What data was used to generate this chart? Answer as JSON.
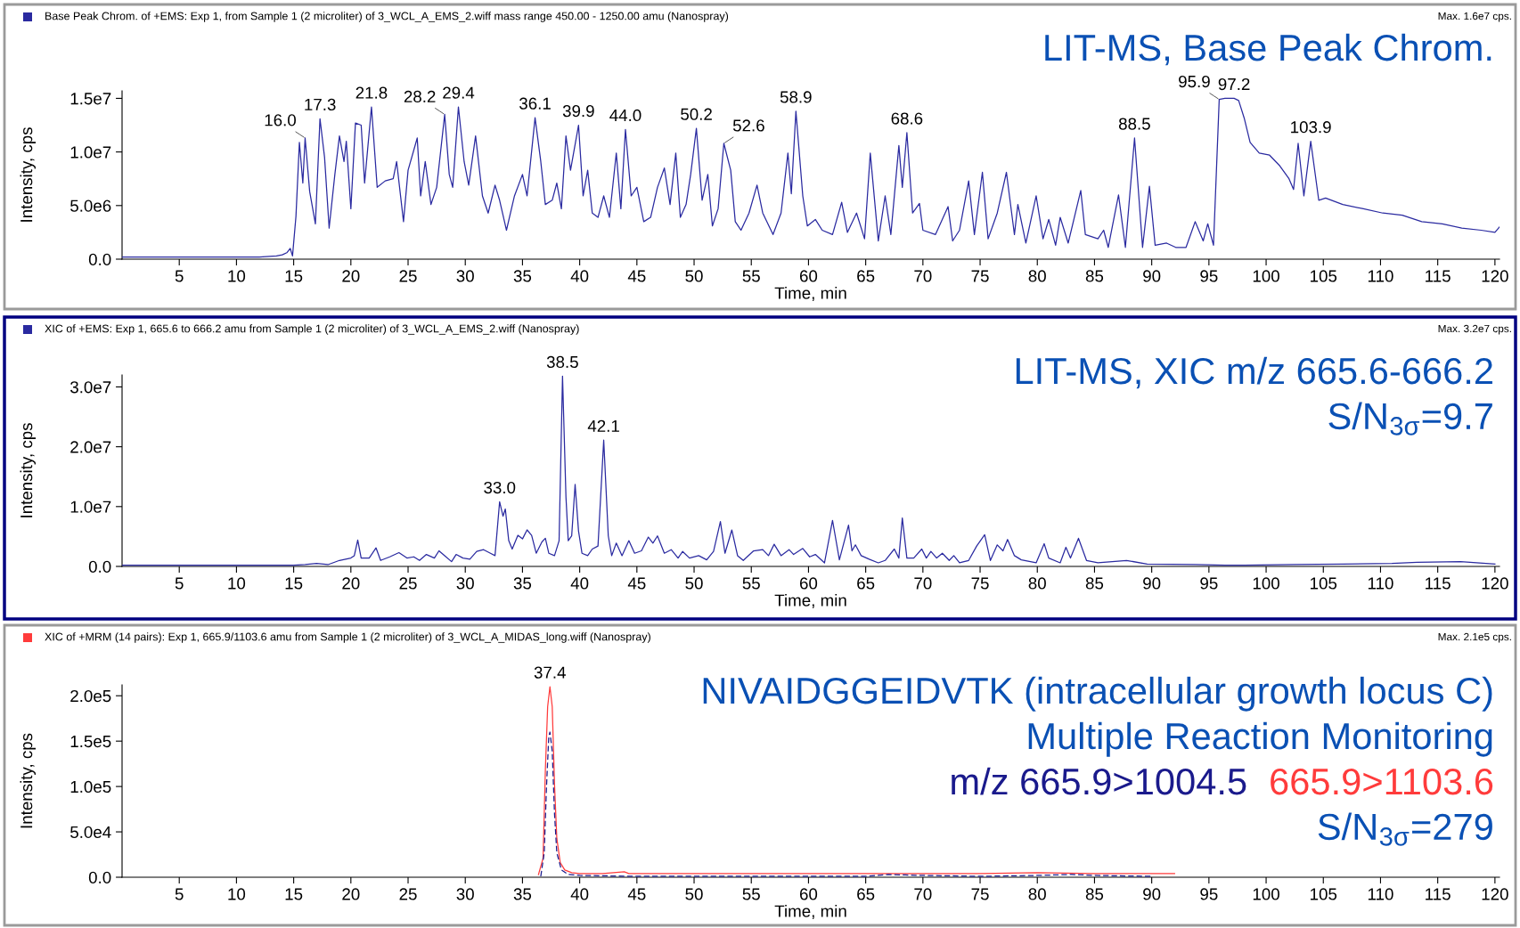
{
  "chart_data": [
    {
      "type": "line",
      "title": "Base Peak Chrom. of +EMS: Exp 1, from Sample 1 (2 microliter) of 3_WCL_A_EMS_2.wiff mass range 450.00 - 1250.00 amu (Nanospray)",
      "subtitle": "Max. 1.6e7 cps.",
      "xlabel": "Time, min",
      "ylabel": "Intensity, cps",
      "annotations": [
        "LIT-MS, Base Peak Chrom.",
        {
          "text": "16.0",
          "x": 16.0,
          "y": 11300000.0
        },
        {
          "text": "17.3",
          "x": 17.3,
          "y": 13100000.0
        },
        {
          "text": "21.8",
          "x": 21.8,
          "y": 14200000.0
        },
        {
          "text": "28.2",
          "x": 28.2,
          "y": 13500000.0
        },
        {
          "text": "29.4",
          "x": 29.4,
          "y": 14200000.0
        },
        {
          "text": "36.1",
          "x": 36.1,
          "y": 13200000.0
        },
        {
          "text": "39.9",
          "x": 39.9,
          "y": 12500000.0
        },
        {
          "text": "44.0",
          "x": 44.0,
          "y": 12100000.0
        },
        {
          "text": "50.2",
          "x": 50.2,
          "y": 12200000.0
        },
        {
          "text": "52.6",
          "x": 52.6,
          "y": 10800000.0
        },
        {
          "text": "58.9",
          "x": 58.9,
          "y": 13800000.0
        },
        {
          "text": "68.6",
          "x": 68.6,
          "y": 11800000.0
        },
        {
          "text": "88.5",
          "x": 88.5,
          "y": 11300000.0
        },
        {
          "text": "95.9",
          "x": 95.9,
          "y": 14900000.0
        },
        {
          "text": "97.2",
          "x": 97.2,
          "y": 15000000.0
        },
        {
          "text": "103.9",
          "x": 103.9,
          "y": 11000000.0
        }
      ],
      "x": [
        0,
        2,
        4,
        6,
        8,
        10,
        12,
        13.5,
        14.0,
        14.4,
        14.7,
        14.9,
        15.2,
        15.5,
        15.8,
        16.0,
        16.4,
        16.9,
        17.3,
        17.7,
        18.1,
        18.6,
        19.0,
        19.4,
        19.6,
        20.0,
        20.4,
        20.9,
        21.2,
        21.8,
        22.3,
        23.0,
        23.7,
        24.0,
        24.6,
        25.0,
        25.8,
        26.1,
        26.5,
        27.0,
        27.5,
        28.2,
        28.6,
        28.9,
        29.4,
        29.9,
        30.3,
        30.9,
        31.5,
        32.0,
        32.6,
        33.0,
        33.6,
        34.3,
        35.0,
        35.4,
        36.1,
        36.6,
        37.0,
        37.6,
        38.0,
        38.4,
        38.8,
        39.2,
        39.9,
        40.3,
        40.7,
        41.1,
        41.6,
        42.1,
        42.6,
        43.2,
        43.6,
        44.0,
        44.5,
        45.0,
        45.6,
        46.2,
        46.8,
        47.4,
        47.9,
        48.4,
        48.8,
        49.3,
        49.7,
        50.2,
        50.7,
        51.2,
        51.6,
        52.1,
        52.6,
        53.2,
        53.6,
        54.1,
        54.8,
        55.5,
        56.0,
        56.9,
        57.6,
        58.2,
        58.5,
        58.9,
        59.5,
        59.9,
        60.6,
        61.2,
        62.1,
        62.9,
        63.4,
        64.2,
        64.9,
        65.4,
        66.1,
        66.7,
        67.2,
        67.9,
        68.2,
        68.6,
        69.1,
        69.7,
        70.0,
        71.1,
        72.2,
        72.6,
        73.2,
        74.0,
        74.5,
        75.2,
        75.7,
        76.5,
        77.3,
        78.0,
        78.3,
        79.0,
        79.9,
        80.5,
        81.0,
        81.6,
        82.0,
        82.7,
        83.8,
        84.2,
        85.3,
        85.8,
        86.2,
        87.1,
        87.7,
        88.5,
        89.2,
        89.8,
        90.3,
        91.3,
        92.1,
        93.0,
        93.8,
        94.5,
        94.9,
        95.4,
        95.9,
        96.4,
        97.2,
        97.6,
        98.1,
        98.6,
        99.4,
        100.3,
        101.2,
        102.0,
        102.4,
        102.8,
        103.3,
        103.9,
        104.6,
        105.2,
        106.7,
        108.5,
        110.2,
        111.9,
        113.6,
        115.4,
        117.1,
        118.8,
        120.0,
        120.4
      ],
      "series": [
        {
          "color": "#2a2aa0",
          "values": [
            200000.0,
            200000.0,
            200000.0,
            200000.0,
            200000.0,
            200000.0,
            200000.0,
            300000.0,
            400000.0,
            600000.0,
            1000000.0,
            300000.0,
            4000000.0,
            10900000.0,
            7100000.0,
            11300000.0,
            6300000.0,
            3300000.0,
            13100000.0,
            9500000.0,
            2900000.0,
            7900000.0,
            11500000.0,
            9100000.0,
            11000000.0,
            4700000.0,
            12700000.0,
            12500000.0,
            7100000.0,
            14200000.0,
            6700000.0,
            7300000.0,
            7500000.0,
            9100000.0,
            3500000.0,
            8300000.0,
            11300000.0,
            5900000.0,
            9100000.0,
            5100000.0,
            6700000.0,
            13500000.0,
            7900000.0,
            6700000.0,
            14200000.0,
            9100000.0,
            6900000.0,
            11500000.0,
            5900000.0,
            4300000.0,
            6900000.0,
            5500000.0,
            2700000.0,
            5900000.0,
            7900000.0,
            5900000.0,
            13200000.0,
            9100000.0,
            5100000.0,
            5500000.0,
            7100000.0,
            4700000.0,
            11500000.0,
            8300000.0,
            12500000.0,
            5900000.0,
            8300000.0,
            4300000.0,
            3900000.0,
            5900000.0,
            3900000.0,
            9900000.0,
            4700000.0,
            12100000.0,
            5900000.0,
            6700000.0,
            3500000.0,
            3900000.0,
            6700000.0,
            8500000.0,
            5100000.0,
            9900000.0,
            3900000.0,
            5100000.0,
            7900000.0,
            12200000.0,
            5500000.0,
            7900000.0,
            3100000.0,
            4700000.0,
            10800000.0,
            8300000.0,
            3500000.0,
            2700000.0,
            4300000.0,
            6900000.0,
            4300000.0,
            2300000.0,
            4300000.0,
            9900000.0,
            6100000.0,
            13800000.0,
            5900000.0,
            3100000.0,
            3700000.0,
            2700000.0,
            2300000.0,
            5300000.0,
            2500000.0,
            4300000.0,
            1900000.0,
            9900000.0,
            1700000.0,
            5900000.0,
            2300000.0,
            10600000.0,
            6700000.0,
            11800000.0,
            4300000.0,
            5200000.0,
            2700000.0,
            2300000.0,
            4900000.0,
            1700000.0,
            2700000.0,
            7300000.0,
            2300000.0,
            8100000.0,
            1900000.0,
            4300000.0,
            8100000.0,
            2300000.0,
            5100000.0,
            1500000.0,
            5900000.0,
            1900000.0,
            3700000.0,
            1300000.0,
            3900000.0,
            1500000.0,
            6400000.0,
            2300000.0,
            1900000.0,
            2700000.0,
            1100000.0,
            6000000.0,
            1100000.0,
            11300000.0,
            1100000.0,
            6800000.0,
            1300000.0,
            1500000.0,
            1100000.0,
            1100000.0,
            3500000.0,
            1700000.0,
            3300000.0,
            1300000.0,
            14900000.0,
            15000000.0,
            15000000.0,
            14800000.0,
            13100000.0,
            10900000.0,
            9900000.0,
            9700000.0,
            8700000.0,
            7500000.0,
            6500000.0,
            10800000.0,
            5900000.0,
            11000000.0,
            5500000.0,
            5700000.0,
            5100000.0,
            4700000.0,
            4300000.0,
            4100000.0,
            3500000.0,
            3300000.0,
            2900000.0,
            2700000.0,
            2500000.0,
            3000000.0
          ]
        }
      ],
      "xlim": [
        0,
        120.4
      ],
      "ylim": [
        0,
        15700000.0
      ],
      "xticks": [
        5,
        10,
        15,
        20,
        25,
        30,
        35,
        40,
        45,
        50,
        55,
        60,
        65,
        70,
        75,
        80,
        85,
        90,
        95,
        100,
        105,
        110,
        115,
        120
      ],
      "yticks": [
        {
          "value": 0,
          "label": "0.0"
        },
        {
          "value": 5000000.0,
          "label": "5.0e6"
        },
        {
          "value": 10000000.0,
          "label": "1.0e7"
        },
        {
          "value": 15000000.0,
          "label": "1.5e7"
        }
      ]
    },
    {
      "type": "line",
      "title": "XIC of +EMS: Exp 1, 665.6 to 666.2 amu from Sample 1 (2 microliter) of 3_WCL_A_EMS_2.wiff (Nanospray)",
      "subtitle": "Max. 3.2e7 cps.",
      "xlabel": "Time, min",
      "ylabel": "Intensity, cps",
      "annotations": [
        "LIT-MS, XIC m/z 665.6-666.2",
        "S/N$_{3σ}$=9.7",
        {
          "text": "33.0",
          "x": 33.0,
          "y": 10800000.0
        },
        {
          "text": "38.5",
          "x": 38.5,
          "y": 31800000.0
        },
        {
          "text": "42.1",
          "x": 42.1,
          "y": 21100000.0
        }
      ],
      "x": [
        0,
        5,
        10,
        15,
        16,
        17,
        18,
        19,
        20,
        20.3,
        20.6,
        20.9,
        21.6,
        22.2,
        22.6,
        23.4,
        24.2,
        24.9,
        25.5,
        26.0,
        26.6,
        27.3,
        27.7,
        28.2,
        28.8,
        29.2,
        29.8,
        30.4,
        31.0,
        31.6,
        32.2,
        32.6,
        33.0,
        33.3,
        33.5,
        33.8,
        34.1,
        34.6,
        35.0,
        35.4,
        35.8,
        36.2,
        36.7,
        37.0,
        37.3,
        37.8,
        38.2,
        38.5,
        38.8,
        39.0,
        39.3,
        39.6,
        39.9,
        40.2,
        40.7,
        41.1,
        41.6,
        42.1,
        42.5,
        42.8,
        43.2,
        43.7,
        44.3,
        44.8,
        45.4,
        46.0,
        46.4,
        46.8,
        47.4,
        48.0,
        48.6,
        49.0,
        49.6,
        50.4,
        51.1,
        51.7,
        52.3,
        52.7,
        53.3,
        53.8,
        54.3,
        55.2,
        56.0,
        56.5,
        57.0,
        57.6,
        58.3,
        58.7,
        59.5,
        60.1,
        60.6,
        61.4,
        62.1,
        62.7,
        63.5,
        63.8,
        64.1,
        64.6,
        65.3,
        66.1,
        66.7,
        67.5,
        67.9,
        68.2,
        68.6,
        69.2,
        69.9,
        70.3,
        70.7,
        71.2,
        71.7,
        72.3,
        72.7,
        73.2,
        74.0,
        74.7,
        75.4,
        75.9,
        76.5,
        77.0,
        77.4,
        78.0,
        78.6,
        79.9,
        80.6,
        81.0,
        82.0,
        82.5,
        82.9,
        83.6,
        84.3,
        85.3,
        87.8,
        89.6,
        93.8,
        96.4,
        98.1,
        102.4,
        106.7,
        111.0,
        113.2,
        117.0,
        120.0
      ],
      "series": [
        {
          "color": "#2a2aa0",
          "values": [
            200000.0,
            200000.0,
            200000.0,
            200000.0,
            300000.0,
            500000.0,
            300000.0,
            1000000.0,
            1400000.0,
            1800000.0,
            4400000.0,
            1400000.0,
            1400000.0,
            3100000.0,
            1000000.0,
            1600000.0,
            2300000.0,
            1400000.0,
            1600000.0,
            1000000.0,
            2000000.0,
            1400000.0,
            2600000.0,
            1800000.0,
            800000.0,
            2000000.0,
            1400000.0,
            1200000.0,
            2500000.0,
            2800000.0,
            2200000.0,
            1800000.0,
            10800000.0,
            8400000.0,
            9600000.0,
            4300000.0,
            2900000.0,
            5200000.0,
            4600000.0,
            6100000.0,
            5200000.0,
            2200000.0,
            4100000.0,
            4700000.0,
            2200000.0,
            1800000.0,
            4300000.0,
            31800000.0,
            11600000.0,
            4300000.0,
            5100000.0,
            13700000.0,
            5900000.0,
            2200000.0,
            1800000.0,
            2900000.0,
            3400000.0,
            21100000.0,
            5100000.0,
            1800000.0,
            3900000.0,
            1800000.0,
            4300000.0,
            2200000.0,
            2600000.0,
            4900000.0,
            3900000.0,
            5100000.0,
            2200000.0,
            2800000.0,
            1400000.0,
            2500000.0,
            1400000.0,
            1800000.0,
            1100000.0,
            2500000.0,
            7500000.0,
            2200000.0,
            6100000.0,
            1800000.0,
            1000000.0,
            2600000.0,
            2800000.0,
            1800000.0,
            3700000.0,
            1800000.0,
            2800000.0,
            2000000.0,
            3000000.0,
            1600000.0,
            2000000.0,
            600000.0,
            7700000.0,
            1100000.0,
            6900000.0,
            2600000.0,
            3600000.0,
            1800000.0,
            1200000.0,
            600000.0,
            1000000.0,
            2900000.0,
            1400000.0,
            8100000.0,
            1400000.0,
            1400000.0,
            2900000.0,
            1400000.0,
            2500000.0,
            1400000.0,
            2200000.0,
            1000000.0,
            1800000.0,
            600000.0,
            1000000.0,
            3400000.0,
            5300000.0,
            1000000.0,
            3600000.0,
            2600000.0,
            4500000.0,
            1800000.0,
            1100000.0,
            600000.0,
            3800000.0,
            1400000.0,
            600000.0,
            3200000.0,
            1400000.0,
            4700000.0,
            1000000.0,
            600000.0,
            1000000.0,
            400000.0,
            300000.0,
            200000.0,
            200000.0,
            300000.0,
            400000.0,
            500000.0,
            700000.0,
            800000.0,
            400000.0
          ]
        }
      ],
      "xlim": [
        0,
        120.4
      ],
      "ylim": [
        0,
        32000000.0
      ],
      "xticks": [
        5,
        10,
        15,
        20,
        25,
        30,
        35,
        40,
        45,
        50,
        55,
        60,
        65,
        70,
        75,
        80,
        85,
        90,
        95,
        100,
        105,
        110,
        115,
        120
      ],
      "yticks": [
        {
          "value": 0,
          "label": "0.0"
        },
        {
          "value": 10000000.0,
          "label": "1.0e7"
        },
        {
          "value": 20000000.0,
          "label": "2.0e7"
        },
        {
          "value": 30000000.0,
          "label": "3.0e7"
        }
      ]
    },
    {
      "type": "line",
      "title": "XIC of +MRM (14 pairs): Exp 1, 665.9/1103.6 amu from Sample 1 (2 microliter) of 3_WCL_A_MIDAS_long.wiff (Nanospray)",
      "subtitle": "Max. 2.1e5 cps.",
      "xlabel": "Time, min",
      "ylabel": "Intensity, cps",
      "annotations": [
        "NIVAIDGGEIDVTK (intracellular growth locus C)",
        "Multiple Reaction Monitoring",
        "S/N$_{3σ}$=279",
        {
          "text": "37.4",
          "x": 37.4,
          "y": 210000.0
        }
      ],
      "legend": "top right",
      "series": [
        {
          "name": "m/z 665.9>1004.5",
          "color": "#1a1a8c",
          "line_style": "dashed",
          "x": [
            36.6,
            36.9,
            37.1,
            37.3,
            37.4,
            37.6,
            37.8,
            38.0,
            38.4,
            39.0,
            40,
            45,
            50,
            55,
            60,
            65,
            67,
            70,
            75,
            80,
            83,
            85,
            90
          ],
          "values": [
            1000.0,
            27000.0,
            100000.0,
            155000.0,
            160000.0,
            139000.0,
            70000.0,
            27000.0,
            8000.0,
            3000.0,
            2000.0,
            1000.0,
            1000.0,
            1000.0,
            1000.0,
            1000.0,
            3000.0,
            2000.0,
            1000.0,
            2000.0,
            3000.0,
            2000.0,
            1000.0
          ]
        },
        {
          "name": "665.9>1103.6",
          "color": "#ff3b3b",
          "x": [
            36.4,
            36.8,
            37.0,
            37.2,
            37.4,
            37.6,
            37.8,
            38.0,
            38.3,
            38.7,
            39.3,
            40.0,
            42,
            43.9,
            44.3,
            50,
            55,
            60,
            65,
            70,
            75,
            80,
            85,
            90,
            92
          ],
          "values": [
            3000.0,
            21000.0,
            118000.0,
            188000.0,
            210000.0,
            188000.0,
            102000.0,
            43000.0,
            16000.0,
            8000.0,
            5000.0,
            4000.0,
            4000.0,
            6000.0,
            4000.0,
            4000.0,
            4000.0,
            4000.0,
            4000.0,
            4000.0,
            4000.0,
            5000.0,
            4000.0,
            4000.0,
            4000.0
          ]
        }
      ],
      "xlim": [
        0,
        120.4
      ],
      "ylim": [
        0,
        212000.0
      ],
      "xticks": [
        5,
        10,
        15,
        20,
        25,
        30,
        35,
        40,
        45,
        50,
        55,
        60,
        65,
        70,
        75,
        80,
        85,
        90,
        95,
        100,
        105,
        110,
        115,
        120
      ],
      "yticks": [
        {
          "value": 0,
          "label": "0.0"
        },
        {
          "value": 50000.0,
          "label": "5.0e4"
        },
        {
          "value": 100000.0,
          "label": "1.0e5"
        },
        {
          "value": 150000.0,
          "label": "1.5e5"
        },
        {
          "value": 200000.0,
          "label": "2.0e5"
        }
      ]
    }
  ]
}
